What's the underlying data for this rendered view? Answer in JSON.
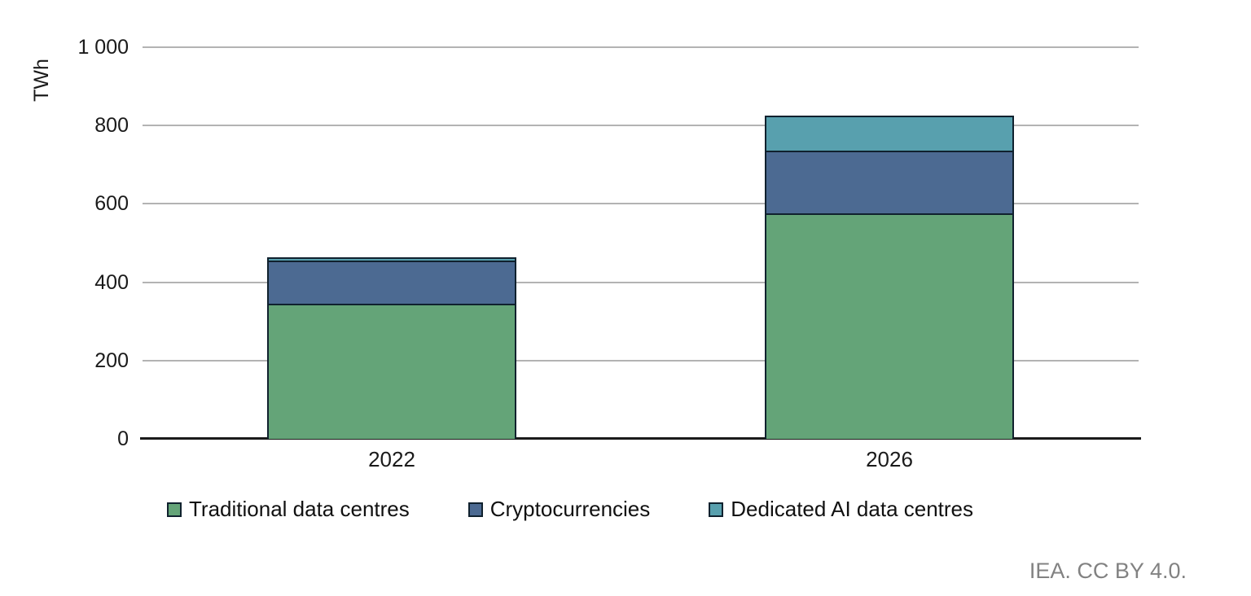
{
  "chart_data": {
    "type": "bar",
    "stacked": true,
    "title": "",
    "ylabel": "TWh",
    "xlabel": "",
    "categories": [
      "2022",
      "2026"
    ],
    "series": [
      {
        "name": "Traditional data centres",
        "color": "#64a478",
        "values": [
          345,
          575
        ]
      },
      {
        "name": "Cryptocurrencies",
        "color": "#4c6a92",
        "values": [
          110,
          160
        ]
      },
      {
        "name": "Dedicated AI data centres",
        "color": "#58a0ae",
        "values": [
          8,
          90
        ]
      }
    ],
    "totals": [
      463,
      825
    ],
    "ylim": [
      0,
      1000
    ],
    "yticks": {
      "values": [
        0,
        200,
        400,
        600,
        800,
        1000
      ],
      "labels": [
        "0",
        "200",
        "400",
        "600",
        "800",
        "1 000"
      ]
    },
    "grid": true,
    "legend_position": "bottom"
  },
  "footer": {
    "attribution": "IEA. CC BY 4.0."
  },
  "colors": {
    "segment_border": "#10212e",
    "gridline": "#b3b3b3",
    "axis_line": "#1a1a1a",
    "tick_text": "#1a1a1a",
    "attribution_text": "#828282",
    "background": "#ffffff"
  }
}
